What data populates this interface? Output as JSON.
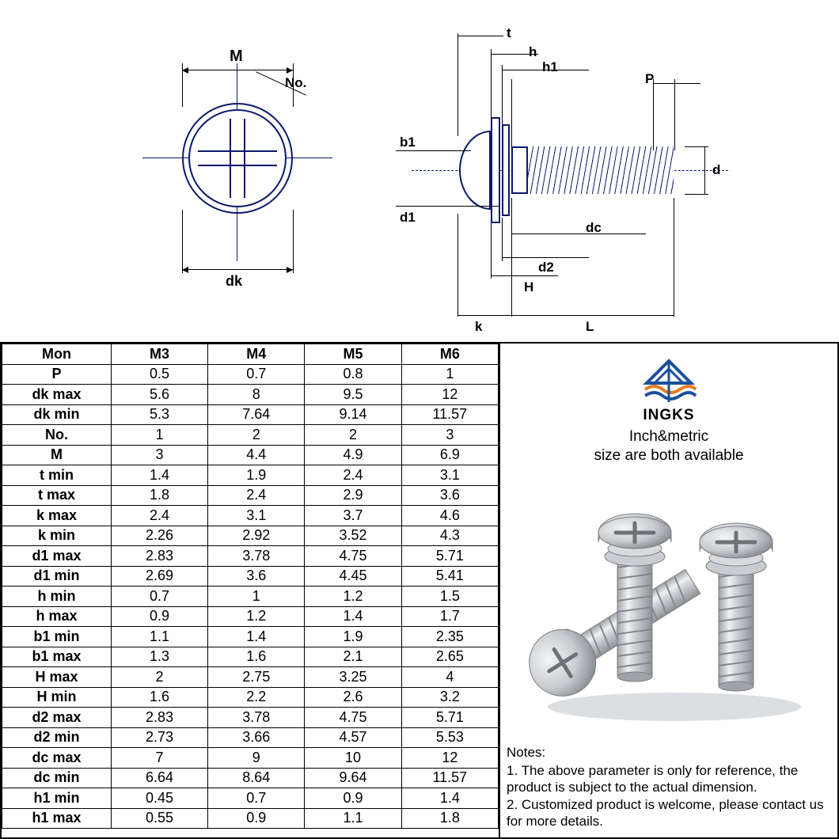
{
  "colors": {
    "diagram_line": "#0a1a6a",
    "text": "#000000",
    "background": "#ffffff",
    "logo_blue": "#1b4f9b",
    "logo_orange": "#e87b1e",
    "screw_metal": "#c9ccd0",
    "screw_shadow": "#9fa3a8",
    "screw_highlight": "#eef0f2"
  },
  "diagram": {
    "topview": {
      "labels": {
        "M": "M",
        "No": "No.",
        "dk": "dk"
      }
    },
    "sideview": {
      "labels": {
        "t": "t",
        "h": "h",
        "h1": "h1",
        "P": "P",
        "d": "d",
        "b1": "b1",
        "d1": "d1",
        "dc": "dc",
        "d2": "d2",
        "H": "H",
        "k": "k",
        "L": "L"
      }
    }
  },
  "table": {
    "columns": [
      "Mon",
      "M3",
      "M4",
      "M5",
      "M6"
    ],
    "rows": [
      [
        "P",
        "0.5",
        "0.7",
        "0.8",
        "1"
      ],
      [
        "dk max",
        "5.6",
        "8",
        "9.5",
        "12"
      ],
      [
        "dk min",
        "5.3",
        "7.64",
        "9.14",
        "11.57"
      ],
      [
        "No.",
        "1",
        "2",
        "2",
        "3"
      ],
      [
        "M",
        "3",
        "4.4",
        "4.9",
        "6.9"
      ],
      [
        "t min",
        "1.4",
        "1.9",
        "2.4",
        "3.1"
      ],
      [
        "t max",
        "1.8",
        "2.4",
        "2.9",
        "3.6"
      ],
      [
        "k max",
        "2.4",
        "3.1",
        "3.7",
        "4.6"
      ],
      [
        "k min",
        "2.26",
        "2.92",
        "3.52",
        "4.3"
      ],
      [
        "d1 max",
        "2.83",
        "3.78",
        "4.75",
        "5.71"
      ],
      [
        "d1 min",
        "2.69",
        "3.6",
        "4.45",
        "5.41"
      ],
      [
        "h min",
        "0.7",
        "1",
        "1.2",
        "1.5"
      ],
      [
        "h max",
        "0.9",
        "1.2",
        "1.4",
        "1.7"
      ],
      [
        "b1 min",
        "1.1",
        "1.4",
        "1.9",
        "2.35"
      ],
      [
        "b1 max",
        "1.3",
        "1.6",
        "2.1",
        "2.65"
      ],
      [
        "H max",
        "2",
        "2.75",
        "3.25",
        "4"
      ],
      [
        "H min",
        "1.6",
        "2.2",
        "2.6",
        "3.2"
      ],
      [
        "d2 max",
        "2.83",
        "3.78",
        "4.75",
        "5.71"
      ],
      [
        "d2 min",
        "2.73",
        "3.66",
        "4.57",
        "5.53"
      ],
      [
        "dc max",
        "7",
        "9",
        "10",
        "12"
      ],
      [
        "dc min",
        "6.64",
        "8.64",
        "9.64",
        "11.57"
      ],
      [
        "h1 min",
        "0.45",
        "0.7",
        "0.9",
        "1.4"
      ],
      [
        "h1 max",
        "0.55",
        "0.9",
        "1.1",
        "1.8"
      ]
    ],
    "col_widths_pct": [
      22,
      19.5,
      19.5,
      19.5,
      19.5
    ]
  },
  "brand": {
    "name": "INGKS",
    "tagline_line1": "Inch&metric",
    "tagline_line2": "size are both available"
  },
  "notes": {
    "title": "Notes:",
    "items": [
      "1. The above parameter is only for reference, the product is subject to the actual dimension.",
      "2. Customized product is welcome, please contact us for more details."
    ]
  }
}
